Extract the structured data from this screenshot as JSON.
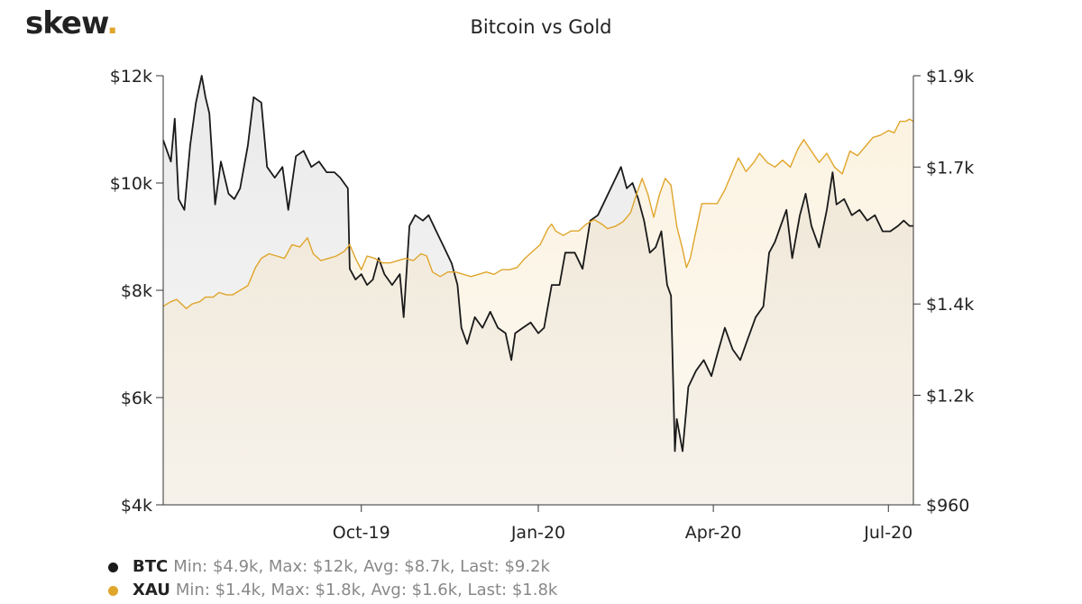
{
  "brand": {
    "name": "skew",
    "dot": "."
  },
  "chart_data": {
    "type": "line",
    "title": "Bitcoin vs Gold",
    "x_tick_labels": [
      "Oct-19",
      "Jan-20",
      "Apr-20",
      "Jul-20"
    ],
    "x_tick_dates": [
      "2019-10-01",
      "2020-01-01",
      "2020-04-01",
      "2020-07-01"
    ],
    "x_range": [
      "2019-06-20",
      "2020-07-14"
    ],
    "left_axis": {
      "ticks": [
        4000,
        6000,
        8000,
        10000,
        12000
      ],
      "labels": [
        "$4k",
        "$6k",
        "$8k",
        "$10k",
        "$12k"
      ],
      "ylim": [
        4000,
        12000
      ]
    },
    "right_axis": {
      "ticks": [
        960,
        1200,
        1400,
        1700,
        1900
      ],
      "labels": [
        "$960",
        "$1.2k",
        "$1.4k",
        "$1.7k",
        "$1.9k"
      ],
      "ylim": [
        960,
        1900
      ]
    },
    "series": [
      {
        "name": "BTC",
        "axis": "left",
        "color": "#1a1a1a",
        "stats": "Min: $4.9k, Max: $12k, Avg: $8.7k, Last: $9.2k",
        "points": [
          [
            "2019-06-20",
            10800
          ],
          [
            "2019-06-24",
            10400
          ],
          [
            "2019-06-26",
            11200
          ],
          [
            "2019-06-28",
            9700
          ],
          [
            "2019-07-01",
            9500
          ],
          [
            "2019-07-04",
            10700
          ],
          [
            "2019-07-07",
            11500
          ],
          [
            "2019-07-10",
            12000
          ],
          [
            "2019-07-12",
            11600
          ],
          [
            "2019-07-14",
            11300
          ],
          [
            "2019-07-17",
            9600
          ],
          [
            "2019-07-20",
            10400
          ],
          [
            "2019-07-24",
            9800
          ],
          [
            "2019-07-27",
            9700
          ],
          [
            "2019-07-30",
            9900
          ],
          [
            "2019-08-03",
            10700
          ],
          [
            "2019-08-06",
            11600
          ],
          [
            "2019-08-10",
            11500
          ],
          [
            "2019-08-13",
            10300
          ],
          [
            "2019-08-17",
            10100
          ],
          [
            "2019-08-21",
            10300
          ],
          [
            "2019-08-24",
            9500
          ],
          [
            "2019-08-28",
            10500
          ],
          [
            "2019-09-01",
            10600
          ],
          [
            "2019-09-05",
            10300
          ],
          [
            "2019-09-09",
            10400
          ],
          [
            "2019-09-13",
            10200
          ],
          [
            "2019-09-17",
            10200
          ],
          [
            "2019-09-20",
            10100
          ],
          [
            "2019-09-24",
            9900
          ],
          [
            "2019-09-25",
            8400
          ],
          [
            "2019-09-28",
            8200
          ],
          [
            "2019-10-01",
            8300
          ],
          [
            "2019-10-04",
            8100
          ],
          [
            "2019-10-07",
            8200
          ],
          [
            "2019-10-10",
            8600
          ],
          [
            "2019-10-13",
            8300
          ],
          [
            "2019-10-17",
            8100
          ],
          [
            "2019-10-21",
            8300
          ],
          [
            "2019-10-23",
            7500
          ],
          [
            "2019-10-26",
            9200
          ],
          [
            "2019-10-29",
            9400
          ],
          [
            "2019-11-02",
            9300
          ],
          [
            "2019-11-05",
            9400
          ],
          [
            "2019-11-09",
            9100
          ],
          [
            "2019-11-13",
            8800
          ],
          [
            "2019-11-17",
            8500
          ],
          [
            "2019-11-20",
            8100
          ],
          [
            "2019-11-22",
            7300
          ],
          [
            "2019-11-25",
            7000
          ],
          [
            "2019-11-29",
            7500
          ],
          [
            "2019-12-03",
            7300
          ],
          [
            "2019-12-07",
            7600
          ],
          [
            "2019-12-11",
            7300
          ],
          [
            "2019-12-15",
            7200
          ],
          [
            "2019-12-18",
            6700
          ],
          [
            "2019-12-20",
            7200
          ],
          [
            "2019-12-24",
            7300
          ],
          [
            "2019-12-28",
            7400
          ],
          [
            "2020-01-01",
            7200
          ],
          [
            "2020-01-04",
            7300
          ],
          [
            "2020-01-08",
            8100
          ],
          [
            "2020-01-12",
            8100
          ],
          [
            "2020-01-15",
            8700
          ],
          [
            "2020-01-20",
            8700
          ],
          [
            "2020-01-24",
            8400
          ],
          [
            "2020-01-28",
            9300
          ],
          [
            "2020-02-01",
            9400
          ],
          [
            "2020-02-05",
            9700
          ],
          [
            "2020-02-09",
            10000
          ],
          [
            "2020-02-13",
            10300
          ],
          [
            "2020-02-16",
            9900
          ],
          [
            "2020-02-19",
            10000
          ],
          [
            "2020-02-22",
            9700
          ],
          [
            "2020-02-25",
            9300
          ],
          [
            "2020-02-28",
            8700
          ],
          [
            "2020-03-02",
            8800
          ],
          [
            "2020-03-05",
            9100
          ],
          [
            "2020-03-08",
            8100
          ],
          [
            "2020-03-10",
            7900
          ],
          [
            "2020-03-12",
            5000
          ],
          [
            "2020-03-13",
            5600
          ],
          [
            "2020-03-16",
            5000
          ],
          [
            "2020-03-19",
            6200
          ],
          [
            "2020-03-23",
            6500
          ],
          [
            "2020-03-27",
            6700
          ],
          [
            "2020-03-31",
            6400
          ],
          [
            "2020-04-03",
            6800
          ],
          [
            "2020-04-07",
            7300
          ],
          [
            "2020-04-11",
            6900
          ],
          [
            "2020-04-15",
            6700
          ],
          [
            "2020-04-19",
            7100
          ],
          [
            "2020-04-23",
            7500
          ],
          [
            "2020-04-27",
            7700
          ],
          [
            "2020-04-30",
            8700
          ],
          [
            "2020-05-03",
            8900
          ],
          [
            "2020-05-06",
            9200
          ],
          [
            "2020-05-09",
            9500
          ],
          [
            "2020-05-12",
            8600
          ],
          [
            "2020-05-16",
            9400
          ],
          [
            "2020-05-19",
            9800
          ],
          [
            "2020-05-22",
            9200
          ],
          [
            "2020-05-26",
            8800
          ],
          [
            "2020-05-30",
            9500
          ],
          [
            "2020-06-02",
            10200
          ],
          [
            "2020-06-04",
            9600
          ],
          [
            "2020-06-08",
            9700
          ],
          [
            "2020-06-12",
            9400
          ],
          [
            "2020-06-16",
            9500
          ],
          [
            "2020-06-20",
            9300
          ],
          [
            "2020-06-24",
            9400
          ],
          [
            "2020-06-28",
            9100
          ],
          [
            "2020-07-02",
            9100
          ],
          [
            "2020-07-06",
            9200
          ],
          [
            "2020-07-09",
            9300
          ],
          [
            "2020-07-12",
            9200
          ],
          [
            "2020-07-14",
            9200
          ]
        ]
      },
      {
        "name": "XAU",
        "axis": "right",
        "color": "#e0a52b",
        "stats": "Min: $1.4k, Max: $1.8k, Avg: $1.6k, Last: $1.8k",
        "points": [
          [
            "2019-06-20",
            1395
          ],
          [
            "2019-06-24",
            1405
          ],
          [
            "2019-06-27",
            1410
          ],
          [
            "2019-07-02",
            1390
          ],
          [
            "2019-07-05",
            1400
          ],
          [
            "2019-07-09",
            1405
          ],
          [
            "2019-07-12",
            1415
          ],
          [
            "2019-07-16",
            1415
          ],
          [
            "2019-07-19",
            1425
          ],
          [
            "2019-07-23",
            1420
          ],
          [
            "2019-07-26",
            1420
          ],
          [
            "2019-07-30",
            1430
          ],
          [
            "2019-08-03",
            1440
          ],
          [
            "2019-08-07",
            1480
          ],
          [
            "2019-08-10",
            1500
          ],
          [
            "2019-08-14",
            1510
          ],
          [
            "2019-08-18",
            1505
          ],
          [
            "2019-08-22",
            1500
          ],
          [
            "2019-08-26",
            1530
          ],
          [
            "2019-08-30",
            1525
          ],
          [
            "2019-09-03",
            1545
          ],
          [
            "2019-09-06",
            1510
          ],
          [
            "2019-09-10",
            1495
          ],
          [
            "2019-09-14",
            1500
          ],
          [
            "2019-09-18",
            1505
          ],
          [
            "2019-09-22",
            1515
          ],
          [
            "2019-09-25",
            1530
          ],
          [
            "2019-09-28",
            1500
          ],
          [
            "2019-10-01",
            1475
          ],
          [
            "2019-10-04",
            1505
          ],
          [
            "2019-10-08",
            1500
          ],
          [
            "2019-10-12",
            1490
          ],
          [
            "2019-10-16",
            1490
          ],
          [
            "2019-10-20",
            1495
          ],
          [
            "2019-10-24",
            1500
          ],
          [
            "2019-10-28",
            1495
          ],
          [
            "2019-11-01",
            1510
          ],
          [
            "2019-11-04",
            1505
          ],
          [
            "2019-11-07",
            1470
          ],
          [
            "2019-11-11",
            1460
          ],
          [
            "2019-11-15",
            1470
          ],
          [
            "2019-11-19",
            1470
          ],
          [
            "2019-11-23",
            1465
          ],
          [
            "2019-11-27",
            1460
          ],
          [
            "2019-12-01",
            1465
          ],
          [
            "2019-12-05",
            1470
          ],
          [
            "2019-12-09",
            1465
          ],
          [
            "2019-12-13",
            1475
          ],
          [
            "2019-12-17",
            1475
          ],
          [
            "2019-12-21",
            1480
          ],
          [
            "2019-12-25",
            1500
          ],
          [
            "2019-12-29",
            1515
          ],
          [
            "2020-01-02",
            1530
          ],
          [
            "2020-01-06",
            1565
          ],
          [
            "2020-01-08",
            1575
          ],
          [
            "2020-01-10",
            1560
          ],
          [
            "2020-01-14",
            1550
          ],
          [
            "2020-01-18",
            1560
          ],
          [
            "2020-01-22",
            1560
          ],
          [
            "2020-01-26",
            1575
          ],
          [
            "2020-01-30",
            1585
          ],
          [
            "2020-02-03",
            1575
          ],
          [
            "2020-02-06",
            1565
          ],
          [
            "2020-02-10",
            1570
          ],
          [
            "2020-02-14",
            1580
          ],
          [
            "2020-02-18",
            1600
          ],
          [
            "2020-02-21",
            1640
          ],
          [
            "2020-02-24",
            1675
          ],
          [
            "2020-02-27",
            1640
          ],
          [
            "2020-03-01",
            1590
          ],
          [
            "2020-03-04",
            1640
          ],
          [
            "2020-03-07",
            1675
          ],
          [
            "2020-03-10",
            1660
          ],
          [
            "2020-03-13",
            1570
          ],
          [
            "2020-03-16",
            1520
          ],
          [
            "2020-03-18",
            1480
          ],
          [
            "2020-03-20",
            1500
          ],
          [
            "2020-03-23",
            1560
          ],
          [
            "2020-03-26",
            1620
          ],
          [
            "2020-03-30",
            1620
          ],
          [
            "2020-04-03",
            1620
          ],
          [
            "2020-04-07",
            1650
          ],
          [
            "2020-04-10",
            1680
          ],
          [
            "2020-04-14",
            1720
          ],
          [
            "2020-04-18",
            1690
          ],
          [
            "2020-04-22",
            1710
          ],
          [
            "2020-04-25",
            1730
          ],
          [
            "2020-04-29",
            1710
          ],
          [
            "2020-05-03",
            1700
          ],
          [
            "2020-05-07",
            1715
          ],
          [
            "2020-05-11",
            1700
          ],
          [
            "2020-05-15",
            1740
          ],
          [
            "2020-05-18",
            1760
          ],
          [
            "2020-05-22",
            1735
          ],
          [
            "2020-05-26",
            1710
          ],
          [
            "2020-05-30",
            1730
          ],
          [
            "2020-06-03",
            1700
          ],
          [
            "2020-06-07",
            1685
          ],
          [
            "2020-06-11",
            1735
          ],
          [
            "2020-06-15",
            1725
          ],
          [
            "2020-06-19",
            1745
          ],
          [
            "2020-06-23",
            1765
          ],
          [
            "2020-06-27",
            1770
          ],
          [
            "2020-07-01",
            1780
          ],
          [
            "2020-07-04",
            1775
          ],
          [
            "2020-07-07",
            1800
          ],
          [
            "2020-07-10",
            1800
          ],
          [
            "2020-07-12",
            1805
          ],
          [
            "2020-07-14",
            1800
          ]
        ]
      }
    ],
    "grid": false,
    "legend": "bottom-left"
  }
}
